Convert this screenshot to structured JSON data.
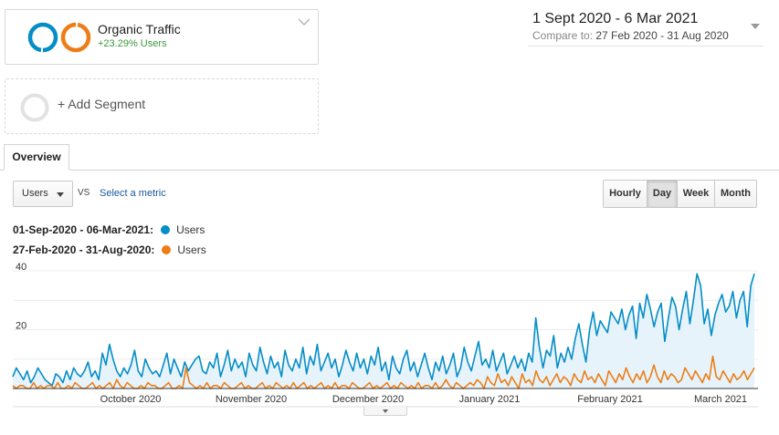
{
  "segment": {
    "name": "Organic Traffic",
    "change": "+23.29% Users",
    "colors": {
      "current": "#058dc7",
      "compare": "#ed7e17"
    }
  },
  "add_segment": {
    "label": "+ Add Segment"
  },
  "date_range": {
    "main": "1 Sept 2020 - 6 Mar 2021",
    "compare_label": "Compare to:",
    "compare_range": "27 Feb 2020 - 31 Aug 2020"
  },
  "tabs": [
    {
      "label": "Overview"
    }
  ],
  "metric_picker": {
    "selected": "Users",
    "vs": "VS",
    "select_metric": "Select a metric"
  },
  "granularity": {
    "options": [
      "Hourly",
      "Day",
      "Week",
      "Month"
    ],
    "active": "Day"
  },
  "legend": [
    {
      "range": "01-Sep-2020 - 06-Mar-2021:",
      "metric": "Users",
      "color": "#058dc7"
    },
    {
      "range": "27-Feb-2020 - 31-Aug-2020:",
      "metric": "Users",
      "color": "#ed7e17"
    }
  ],
  "chart_data": {
    "type": "line",
    "title": "",
    "xlabel": "",
    "ylabel": "",
    "ylim": [
      0,
      40
    ],
    "y_ticks": [
      20,
      40
    ],
    "x_tick_labels": [
      "October 2020",
      "November 2020",
      "December 2020",
      "January 2021",
      "February 2021",
      "March 2021"
    ],
    "grid": true,
    "series": [
      {
        "name": "Users",
        "color": "#058dc7",
        "fill": "#e6f3fa",
        "values": [
          4,
          7,
          5,
          3,
          6,
          2,
          4,
          7,
          5,
          3,
          2,
          1,
          5,
          4,
          2,
          6,
          3,
          7,
          5,
          4,
          6,
          9,
          4,
          6,
          3,
          12,
          8,
          15,
          10,
          6,
          4,
          7,
          5,
          8,
          13,
          6,
          4,
          10,
          7,
          5,
          6,
          4,
          8,
          12,
          5,
          10,
          7,
          4,
          9,
          6,
          8,
          10,
          11,
          6,
          5,
          9,
          7,
          12,
          4,
          8,
          13,
          6,
          10,
          7,
          9,
          4,
          12,
          8,
          6,
          14,
          9,
          5,
          11,
          7,
          9,
          4,
          13,
          8,
          6,
          10,
          7,
          14,
          5,
          11,
          8,
          15,
          6,
          9,
          12,
          7,
          10,
          4,
          8,
          13,
          9,
          6,
          12,
          7,
          10,
          5,
          11,
          8,
          14,
          6,
          9,
          3,
          11,
          7,
          5,
          10,
          13,
          6,
          9,
          4,
          8,
          12,
          7,
          3,
          9,
          6,
          11,
          5,
          8,
          12,
          4,
          7,
          14,
          9,
          6,
          11,
          16,
          8,
          10,
          7,
          13,
          6,
          9,
          12,
          5,
          8,
          11,
          7,
          10,
          6,
          12,
          9,
          24,
          14,
          7,
          13,
          11,
          18,
          7,
          12,
          9,
          14,
          10,
          17,
          22,
          15,
          9,
          20,
          26,
          18,
          23,
          21,
          19,
          26,
          24,
          22,
          27,
          20,
          25,
          28,
          17,
          29,
          24,
          32,
          27,
          21,
          26,
          29,
          16,
          24,
          31,
          28,
          20,
          27,
          33,
          22,
          30,
          39,
          35,
          22,
          27,
          18,
          25,
          29,
          32,
          26,
          28,
          33,
          24,
          30,
          33,
          21,
          35,
          39
        ]
      },
      {
        "name": "Users",
        "color": "#ed7e17",
        "values": [
          1,
          0,
          1,
          1,
          0,
          0,
          2,
          0,
          1,
          0,
          1,
          1,
          0,
          2,
          0,
          0,
          1,
          0,
          2,
          1,
          0,
          0,
          1,
          2,
          0,
          1,
          0,
          1,
          2,
          0,
          3,
          1,
          0,
          2,
          1,
          0,
          0,
          1,
          0,
          2,
          1,
          1,
          0,
          0,
          1,
          2,
          0,
          0,
          1,
          0,
          7,
          2,
          1,
          0,
          1,
          0,
          2,
          0,
          1,
          1,
          0,
          2,
          1,
          0,
          0,
          1,
          2,
          0,
          1,
          0,
          0,
          1,
          2,
          0,
          1,
          0,
          2,
          1,
          0,
          1,
          0,
          2,
          0,
          1,
          2,
          0,
          1,
          0,
          1,
          2,
          0,
          1,
          0,
          2,
          0,
          1,
          1,
          0,
          2,
          1,
          0,
          0,
          1,
          2,
          0,
          1,
          0,
          1,
          2,
          0,
          1,
          0,
          2,
          1,
          0,
          1,
          0,
          2,
          0,
          1,
          1,
          0,
          2,
          0,
          1,
          3,
          1,
          0,
          2,
          1,
          0,
          1,
          2,
          1,
          3,
          2,
          0,
          4,
          2,
          1,
          5,
          2,
          3,
          1,
          4,
          2,
          0,
          5,
          2,
          3,
          1,
          6,
          3,
          2,
          4,
          1,
          3,
          5,
          2,
          4,
          3,
          1,
          5,
          3,
          2,
          6,
          3,
          4,
          2,
          5,
          3,
          1,
          6,
          4,
          2,
          5,
          3,
          7,
          4,
          2,
          5,
          3,
          6,
          2,
          4,
          8,
          4,
          2,
          6,
          3,
          5,
          4,
          2,
          3,
          7,
          5,
          3,
          6,
          4,
          2,
          5,
          3,
          11,
          4,
          3,
          6,
          4,
          2,
          5,
          3,
          4,
          6,
          3,
          5,
          7
        ]
      }
    ]
  },
  "icons": {
    "segment_chevron": "chevron-down-icon",
    "date_caret": "caret-down-icon",
    "metric_caret": "caret-down-icon",
    "collapse_caret": "caret-down-icon"
  }
}
